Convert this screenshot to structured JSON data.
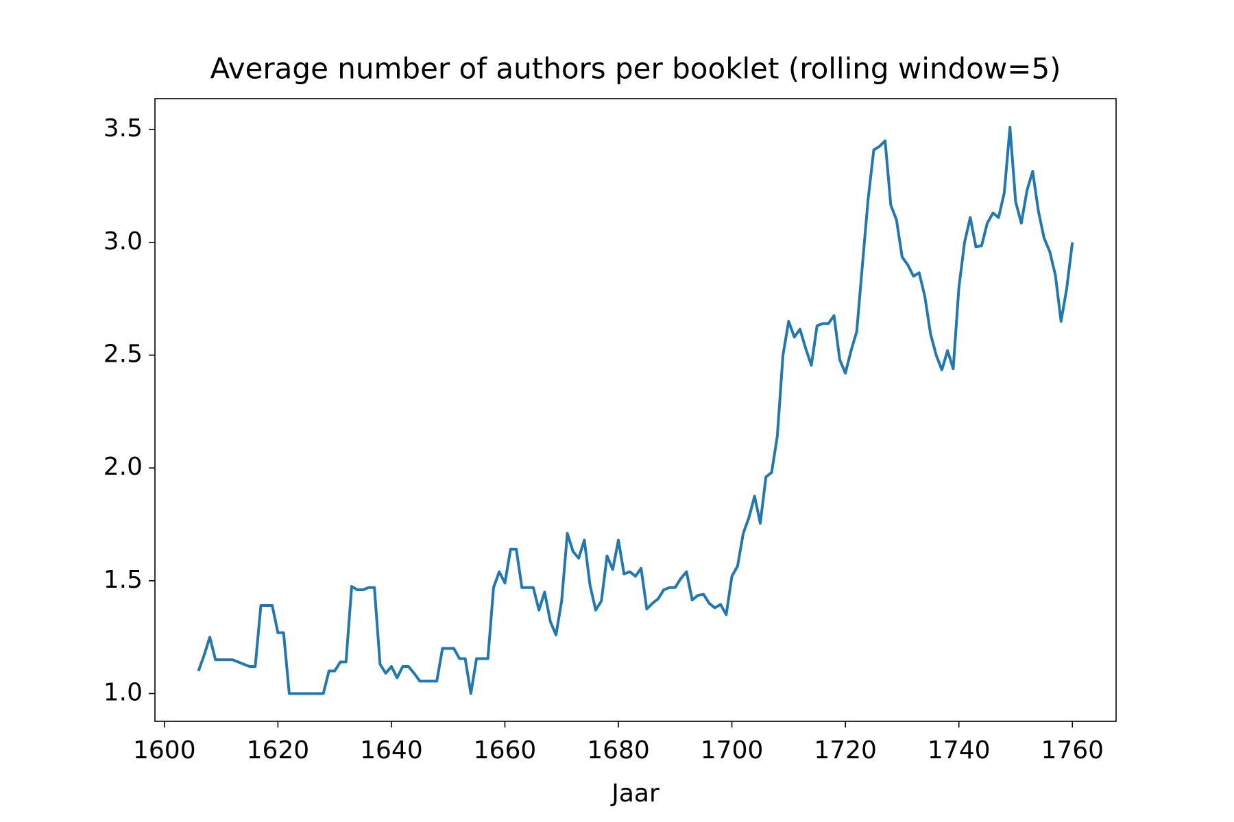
{
  "chart_data": {
    "type": "line",
    "title": "Average number of authors per booklet (rolling window=5)",
    "x_label": "Jaar",
    "x": [
      1606,
      1607,
      1608,
      1609,
      1610,
      1611,
      1612,
      1613,
      1614,
      1615,
      1616,
      1617,
      1618,
      1619,
      1620,
      1621,
      1622,
      1623,
      1624,
      1625,
      1626,
      1627,
      1628,
      1629,
      1630,
      1631,
      1632,
      1633,
      1634,
      1635,
      1636,
      1637,
      1638,
      1639,
      1640,
      1641,
      1642,
      1643,
      1644,
      1645,
      1646,
      1647,
      1648,
      1649,
      1650,
      1651,
      1652,
      1653,
      1654,
      1655,
      1656,
      1657,
      1658,
      1659,
      1660,
      1661,
      1662,
      1663,
      1664,
      1665,
      1666,
      1667,
      1668,
      1669,
      1670,
      1671,
      1672,
      1673,
      1674,
      1675,
      1676,
      1677,
      1678,
      1679,
      1680,
      1681,
      1682,
      1683,
      1684,
      1685,
      1686,
      1687,
      1688,
      1689,
      1690,
      1691,
      1692,
      1693,
      1694,
      1695,
      1696,
      1697,
      1698,
      1699,
      1700,
      1701,
      1702,
      1703,
      1704,
      1705,
      1706,
      1707,
      1708,
      1709,
      1710,
      1711,
      1712,
      1713,
      1714,
      1715,
      1716,
      1717,
      1718,
      1719,
      1720,
      1721,
      1722,
      1723,
      1724,
      1725,
      1726,
      1727,
      1728,
      1729,
      1730,
      1731,
      1732,
      1733,
      1734,
      1735,
      1736,
      1737,
      1738,
      1739,
      1740,
      1741,
      1742,
      1743,
      1744,
      1745,
      1746,
      1747,
      1748,
      1749,
      1750,
      1751,
      1752,
      1753,
      1754,
      1755,
      1756,
      1757,
      1758,
      1759,
      1760
    ],
    "series": [
      {
        "color": "#1f77b4",
        "values": [
          1.1,
          1.17,
          1.25,
          1.15,
          1.15,
          1.15,
          1.15,
          1.14,
          1.13,
          1.12,
          1.12,
          1.39,
          1.39,
          1.39,
          1.27,
          1.27,
          1.0,
          1.0,
          1.0,
          1.0,
          1.0,
          1.0,
          1.0,
          1.1,
          1.1,
          1.14,
          1.14,
          1.475,
          1.46,
          1.46,
          1.47,
          1.47,
          1.13,
          1.09,
          1.12,
          1.07,
          1.12,
          1.12,
          1.09,
          1.055,
          1.055,
          1.055,
          1.055,
          1.2,
          1.2,
          1.2,
          1.155,
          1.155,
          1.0,
          1.155,
          1.155,
          1.155,
          1.47,
          1.54,
          1.49,
          1.64,
          1.64,
          1.47,
          1.47,
          1.47,
          1.37,
          1.45,
          1.32,
          1.26,
          1.41,
          1.71,
          1.63,
          1.6,
          1.68,
          1.48,
          1.37,
          1.41,
          1.61,
          1.55,
          1.68,
          1.53,
          1.54,
          1.52,
          1.555,
          1.375,
          1.4,
          1.42,
          1.46,
          1.47,
          1.47,
          1.51,
          1.54,
          1.415,
          1.435,
          1.44,
          1.4,
          1.38,
          1.395,
          1.35,
          1.52,
          1.565,
          1.71,
          1.78,
          1.875,
          1.755,
          1.96,
          1.98,
          2.14,
          2.5,
          2.65,
          2.58,
          2.615,
          2.53,
          2.455,
          2.63,
          2.64,
          2.64,
          2.675,
          2.48,
          2.42,
          2.52,
          2.605,
          2.9,
          3.19,
          3.41,
          3.425,
          3.45,
          3.165,
          3.1,
          2.935,
          2.9,
          2.85,
          2.865,
          2.76,
          2.595,
          2.5,
          2.435,
          2.52,
          2.44,
          2.8,
          3.0,
          3.11,
          2.98,
          2.985,
          3.085,
          3.13,
          3.11,
          3.22,
          3.51,
          3.18,
          3.085,
          3.23,
          3.315,
          3.14,
          3.02,
          2.96,
          2.855,
          2.65,
          2.795,
          3.0
        ]
      }
    ],
    "xlim": [
      1598.33,
      1767.7
    ],
    "ylim": [
      0.877,
      3.637
    ],
    "xticks": [
      1600,
      1620,
      1640,
      1660,
      1680,
      1700,
      1720,
      1740,
      1760
    ],
    "yticks": [
      {
        "value": 1,
        "label": "1.0"
      },
      1.5,
      {
        "value": 2,
        "label": "2.0"
      },
      2.5,
      {
        "value": 3,
        "label": "3.0"
      },
      3.5
    ]
  }
}
